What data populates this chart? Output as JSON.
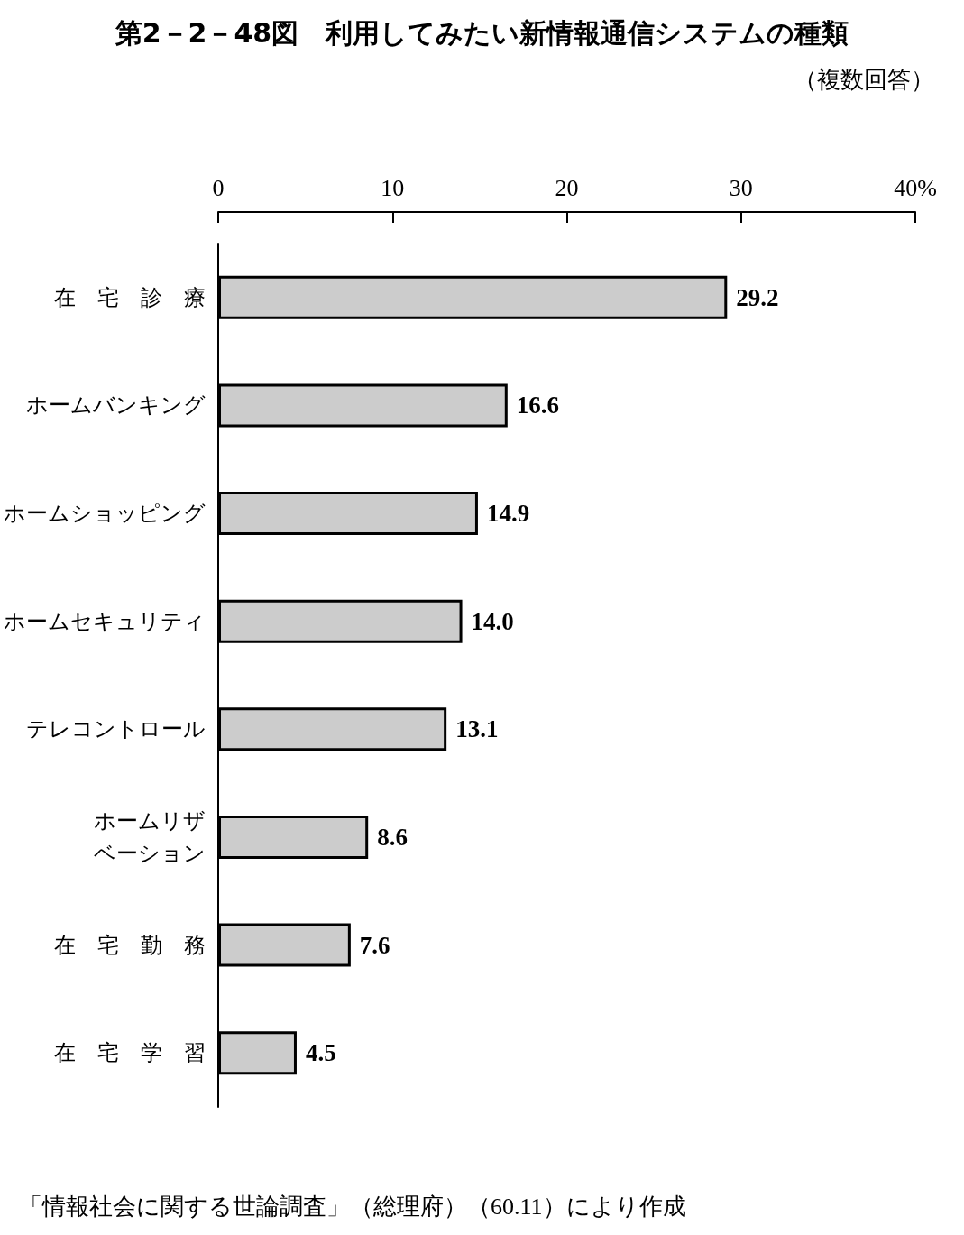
{
  "chart_data": {
    "type": "bar",
    "orientation": "horizontal",
    "title": "第2－2－48図　利用してみたい新情報通信システムの種類",
    "subtitle": "（複数回答）",
    "annotations": [
      "「情報社会に関する世論調査」（総理府）（60.11）により作成"
    ],
    "categories": [
      "在　宅　診　療",
      "ホームバンキング",
      "ホームショッピング",
      "ホームセキュリティ",
      "テレコントロール",
      "ホームリザベーション",
      "在　宅　勤　務",
      "在　宅　学　習"
    ],
    "values": [
      29.2,
      16.6,
      14.9,
      14.0,
      13.1,
      8.6,
      7.6,
      4.5
    ],
    "value_labels": [
      "29.2",
      "16.6",
      "14.9",
      "14.0",
      "13.1",
      "8.6",
      "7.6",
      "4.5"
    ],
    "color": "#cccccc",
    "xlim": [
      0,
      40
    ],
    "xticks": [
      0,
      10,
      20,
      30,
      {
        "value": 40,
        "label": "40%"
      }
    ],
    "grid": false
  }
}
